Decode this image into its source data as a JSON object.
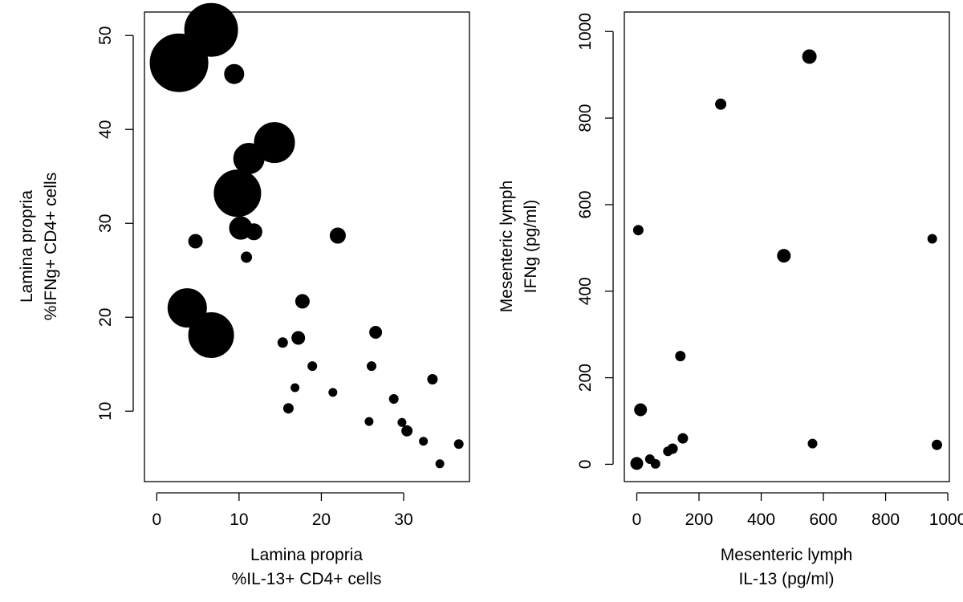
{
  "chart_data": [
    {
      "type": "scatter",
      "title": "",
      "xlabel_lines": [
        "Lamina propria",
        "%IL-13+ CD4+ cells"
      ],
      "ylabel_lines": [
        "Lamina propria",
        "%IFNg+ CD4+ cells"
      ],
      "xlim": [
        -1.5,
        38
      ],
      "ylim": [
        2.5,
        52.5
      ],
      "xticks": [
        0,
        10,
        20,
        30
      ],
      "yticks": [
        10,
        20,
        30,
        40,
        50
      ],
      "xtick_labels": [
        "0",
        "10",
        "20",
        "30"
      ],
      "ytick_labels": [
        "10",
        "20",
        "30",
        "40",
        "50"
      ],
      "marker_color": "#000000",
      "points": [
        {
          "x": 2.7,
          "y": 47.1,
          "size": 36
        },
        {
          "x": 6.6,
          "y": 50.6,
          "size": 33
        },
        {
          "x": 9.4,
          "y": 45.9,
          "size": 12
        },
        {
          "x": 14.3,
          "y": 38.6,
          "size": 25
        },
        {
          "x": 11.2,
          "y": 36.9,
          "size": 19
        },
        {
          "x": 9.8,
          "y": 33.2,
          "size": 29
        },
        {
          "x": 10.2,
          "y": 29.5,
          "size": 14
        },
        {
          "x": 11.8,
          "y": 29.1,
          "size": 10
        },
        {
          "x": 4.7,
          "y": 28.1,
          "size": 8.5
        },
        {
          "x": 10.9,
          "y": 26.4,
          "size": 6.5
        },
        {
          "x": 22.0,
          "y": 28.7,
          "size": 9.5
        },
        {
          "x": 3.7,
          "y": 21.0,
          "size": 24
        },
        {
          "x": 6.6,
          "y": 18.1,
          "size": 28
        },
        {
          "x": 17.7,
          "y": 21.7,
          "size": 8.5
        },
        {
          "x": 26.6,
          "y": 18.4,
          "size": 7.5
        },
        {
          "x": 15.3,
          "y": 17.3,
          "size": 6
        },
        {
          "x": 17.2,
          "y": 17.8,
          "size": 8
        },
        {
          "x": 18.9,
          "y": 14.8,
          "size": 5.5
        },
        {
          "x": 26.1,
          "y": 14.8,
          "size": 5.5
        },
        {
          "x": 33.5,
          "y": 13.4,
          "size": 6
        },
        {
          "x": 16.8,
          "y": 12.5,
          "size": 5
        },
        {
          "x": 21.4,
          "y": 12.0,
          "size": 5
        },
        {
          "x": 28.8,
          "y": 11.3,
          "size": 5.5
        },
        {
          "x": 16.0,
          "y": 10.3,
          "size": 6
        },
        {
          "x": 25.8,
          "y": 8.9,
          "size": 5
        },
        {
          "x": 29.8,
          "y": 8.8,
          "size": 5
        },
        {
          "x": 30.4,
          "y": 7.9,
          "size": 6.5
        },
        {
          "x": 32.4,
          "y": 6.8,
          "size": 5
        },
        {
          "x": 36.7,
          "y": 6.5,
          "size": 5.5
        },
        {
          "x": 34.4,
          "y": 4.4,
          "size": 5
        }
      ]
    },
    {
      "type": "scatter",
      "title": "",
      "xlabel_lines": [
        "Mesenteric lymph",
        "IL-13 (pg/ml)"
      ],
      "ylabel_lines": [
        "Mesenteric lymph",
        "IFNg (pg/ml)"
      ],
      "xlim": [
        -40,
        1005
      ],
      "ylim": [
        -40,
        1045
      ],
      "xticks": [
        0,
        200,
        400,
        600,
        800,
        1000
      ],
      "yticks": [
        0,
        200,
        400,
        600,
        800,
        1000
      ],
      "xtick_labels": [
        "0",
        "200",
        "400",
        "600",
        "800",
        "1000"
      ],
      "ytick_labels": [
        "0",
        "200",
        "400",
        "600",
        "800",
        "1000"
      ],
      "marker_color": "#000000",
      "points": [
        {
          "x": 555,
          "y": 942,
          "size": 8.5
        },
        {
          "x": 270,
          "y": 832,
          "size": 6.5
        },
        {
          "x": 5,
          "y": 541,
          "size": 6
        },
        {
          "x": 950,
          "y": 521,
          "size": 5.5
        },
        {
          "x": 473,
          "y": 482,
          "size": 8
        },
        {
          "x": 140,
          "y": 250,
          "size": 6
        },
        {
          "x": 12,
          "y": 126,
          "size": 7.5
        },
        {
          "x": 148,
          "y": 60,
          "size": 6
        },
        {
          "x": 565,
          "y": 48,
          "size": 5.5
        },
        {
          "x": 965,
          "y": 45,
          "size": 6
        },
        {
          "x": 115,
          "y": 36,
          "size": 6
        },
        {
          "x": 100,
          "y": 30,
          "size": 5.5
        },
        {
          "x": 42,
          "y": 12,
          "size": 5.5
        },
        {
          "x": 0,
          "y": 2,
          "size": 7.5
        },
        {
          "x": 60,
          "y": 1,
          "size": 5.5
        }
      ]
    }
  ]
}
